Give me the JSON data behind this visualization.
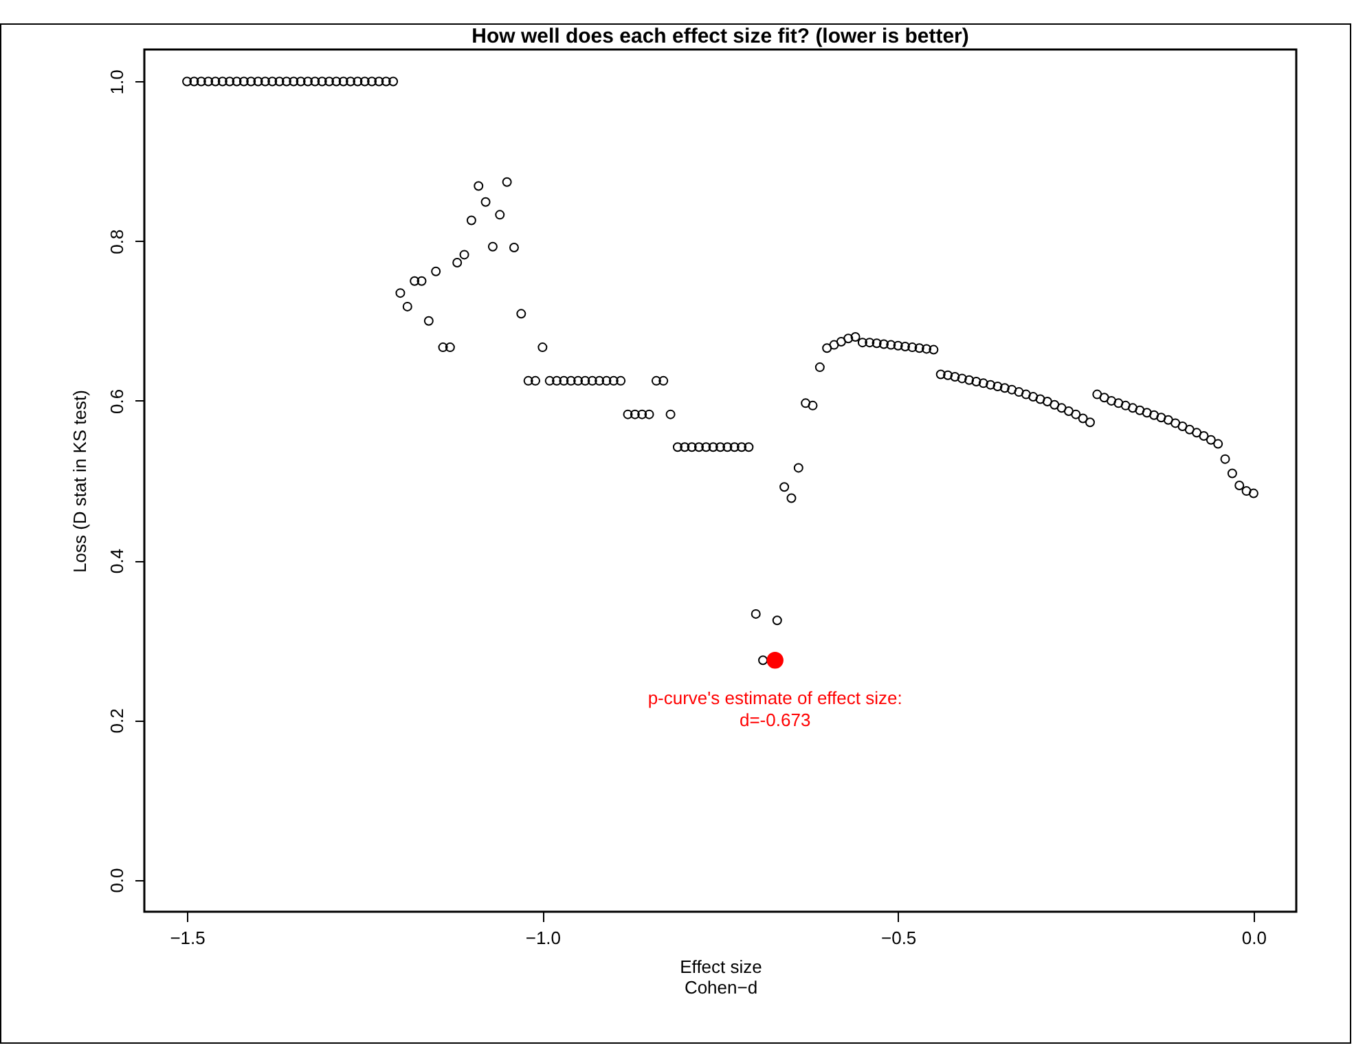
{
  "chart_data": {
    "type": "scatter",
    "title": "How well does each effect size fit? (lower is better)",
    "xlabel": "Effect size\nCohen−d",
    "ylabel": "Loss (D stat in KS test)",
    "xlim": [
      -1.56,
      0.06
    ],
    "ylim": [
      -0.04,
      1.04
    ],
    "xticks": [
      {
        "value": -1.5,
        "label": "−1.5"
      },
      {
        "value": -1.0,
        "label": "−1.0"
      },
      {
        "value": -0.5,
        "label": "−0.5"
      },
      {
        "value": 0,
        "label": "0.0"
      }
    ],
    "yticks": [
      {
        "value": 0,
        "label": "0.0"
      },
      {
        "value": 0.2,
        "label": "0.2"
      },
      {
        "value": 0.4,
        "label": "0.4"
      },
      {
        "value": 0.6,
        "label": "0.6"
      },
      {
        "value": 0.8,
        "label": "0.8"
      },
      {
        "value": 1.0,
        "label": "1.0"
      }
    ],
    "grid": false,
    "marker": "circle",
    "x": [
      -1.5,
      -1.49,
      -1.48,
      -1.47,
      -1.46,
      -1.45,
      -1.44,
      -1.43,
      -1.42,
      -1.41,
      -1.4,
      -1.39,
      -1.38,
      -1.37,
      -1.36,
      -1.35,
      -1.34,
      -1.33,
      -1.32,
      -1.31,
      -1.3,
      -1.29,
      -1.28,
      -1.27,
      -1.26,
      -1.25,
      -1.24,
      -1.23,
      -1.22,
      -1.21,
      -1.2,
      -1.19,
      -1.18,
      -1.17,
      -1.16,
      -1.15,
      -1.14,
      -1.13,
      -1.12,
      -1.11,
      -1.1,
      -1.09,
      -1.08,
      -1.07,
      -1.06,
      -1.05,
      -1.04,
      -1.03,
      -1.02,
      -1.01,
      -1.0,
      -0.99,
      -0.98,
      -0.97,
      -0.96,
      -0.95,
      -0.94,
      -0.93,
      -0.92,
      -0.91,
      -0.9,
      -0.89,
      -0.88,
      -0.87,
      -0.86,
      -0.85,
      -0.84,
      -0.83,
      -0.82,
      -0.81,
      -0.8,
      -0.79,
      -0.78,
      -0.77,
      -0.76,
      -0.75,
      -0.74,
      -0.73,
      -0.72,
      -0.71,
      -0.7,
      -0.69,
      -0.68,
      -0.67,
      -0.66,
      -0.65,
      -0.64,
      -0.63,
      -0.62,
      -0.61,
      -0.6,
      -0.59,
      -0.58,
      -0.57,
      -0.56,
      -0.55,
      -0.54,
      -0.53,
      -0.52,
      -0.51,
      -0.5,
      -0.49,
      -0.48,
      -0.47,
      -0.46,
      -0.45,
      -0.44,
      -0.43,
      -0.42,
      -0.41,
      -0.4,
      -0.39,
      -0.38,
      -0.37,
      -0.36,
      -0.35,
      -0.34,
      -0.33,
      -0.32,
      -0.31,
      -0.3,
      -0.29,
      -0.28,
      -0.27,
      -0.26,
      -0.25,
      -0.24,
      -0.23,
      -0.22,
      -0.21,
      -0.2,
      -0.19,
      -0.18,
      -0.17,
      -0.16,
      -0.15,
      -0.14,
      -0.13,
      -0.12,
      -0.11,
      -0.1,
      -0.09,
      -0.08,
      -0.07,
      -0.06,
      -0.05,
      -0.04,
      -0.03,
      -0.02,
      -0.01,
      0.0
    ],
    "series": [
      {
        "color": "#000000",
        "values": [
          1.0,
          1.0,
          1.0,
          1.0,
          1.0,
          1.0,
          1.0,
          1.0,
          1.0,
          1.0,
          1.0,
          1.0,
          1.0,
          1.0,
          1.0,
          1.0,
          1.0,
          1.0,
          1.0,
          1.0,
          1.0,
          1.0,
          1.0,
          1.0,
          1.0,
          1.0,
          1.0,
          1.0,
          1.0,
          1.0,
          0.735,
          0.718,
          0.75,
          0.75,
          0.7,
          0.762,
          0.667,
          0.667,
          0.773,
          0.783,
          0.826,
          0.869,
          0.849,
          0.793,
          0.833,
          0.874,
          0.792,
          0.709,
          0.625,
          0.625,
          0.667,
          0.625,
          0.625,
          0.625,
          0.625,
          0.625,
          0.625,
          0.625,
          0.625,
          0.625,
          0.625,
          0.625,
          0.583,
          0.583,
          0.583,
          0.583,
          0.625,
          0.625,
          0.583,
          0.542,
          0.542,
          0.542,
          0.542,
          0.542,
          0.542,
          0.542,
          0.542,
          0.542,
          0.542,
          0.542,
          0.333,
          0.275,
          null,
          0.325,
          0.492,
          0.478,
          0.516,
          0.597,
          0.594,
          0.642,
          0.666,
          0.67,
          0.674,
          0.678,
          0.68,
          0.673,
          0.673,
          0.672,
          0.671,
          0.67,
          0.669,
          0.668,
          0.667,
          0.666,
          0.665,
          0.664,
          0.633,
          0.632,
          0.63,
          0.628,
          0.626,
          0.624,
          0.622,
          0.62,
          0.618,
          0.616,
          0.614,
          0.611,
          0.608,
          0.605,
          0.602,
          0.599,
          0.595,
          0.591,
          0.587,
          0.583,
          0.578,
          0.573,
          0.608,
          0.604,
          0.6,
          0.597,
          0.594,
          0.591,
          0.588,
          0.585,
          0.582,
          0.579,
          0.576,
          0.572,
          0.568,
          0.564,
          0.56,
          0.556,
          0.551,
          0.546,
          0.527,
          0.509,
          0.494,
          0.487,
          0.484
        ]
      },
      {
        "color": "#ff0000",
        "x": [
          -0.673
        ],
        "values": [
          0.275
        ]
      }
    ],
    "annotations": [
      {
        "text": "p-curve's estimate of effect size:\nd=-0.673",
        "x": -0.673,
        "y": 0.275
      }
    ]
  }
}
